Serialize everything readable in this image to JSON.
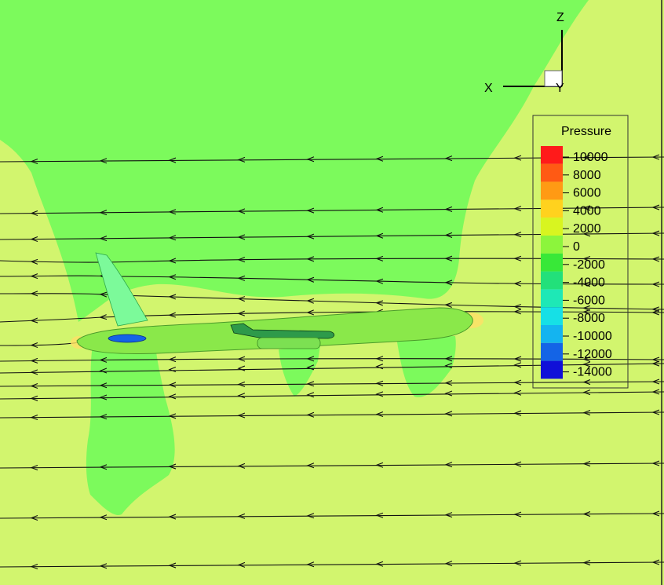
{
  "axes": {
    "x_label": "X",
    "y_label": "Y",
    "z_label": "Z"
  },
  "legend": {
    "title": "Pressure",
    "levels": [
      {
        "label": "10000",
        "color": "#ff1a1a"
      },
      {
        "label": "8000",
        "color": "#ff5a14"
      },
      {
        "label": "6000",
        "color": "#ff9a14"
      },
      {
        "label": "4000",
        "color": "#ffd21e"
      },
      {
        "label": "2000",
        "color": "#d8f520"
      },
      {
        "label": "0",
        "color": "#8cf53c"
      },
      {
        "label": "-2000",
        "color": "#38e838"
      },
      {
        "label": "-4000",
        "color": "#22e07a"
      },
      {
        "label": "-6000",
        "color": "#1ee8b6"
      },
      {
        "label": "-8000",
        "color": "#16e0e6"
      },
      {
        "label": "-10000",
        "color": "#14b4f0"
      },
      {
        "label": "-12000",
        "color": "#1464e6"
      },
      {
        "label": "-14000",
        "color": "#1010d8"
      }
    ]
  },
  "field_colors": {
    "ambient": "#d2f56e",
    "low_pressure": "#7cfa5c",
    "suction": "#7cfa9a",
    "streamline": "#111111"
  }
}
